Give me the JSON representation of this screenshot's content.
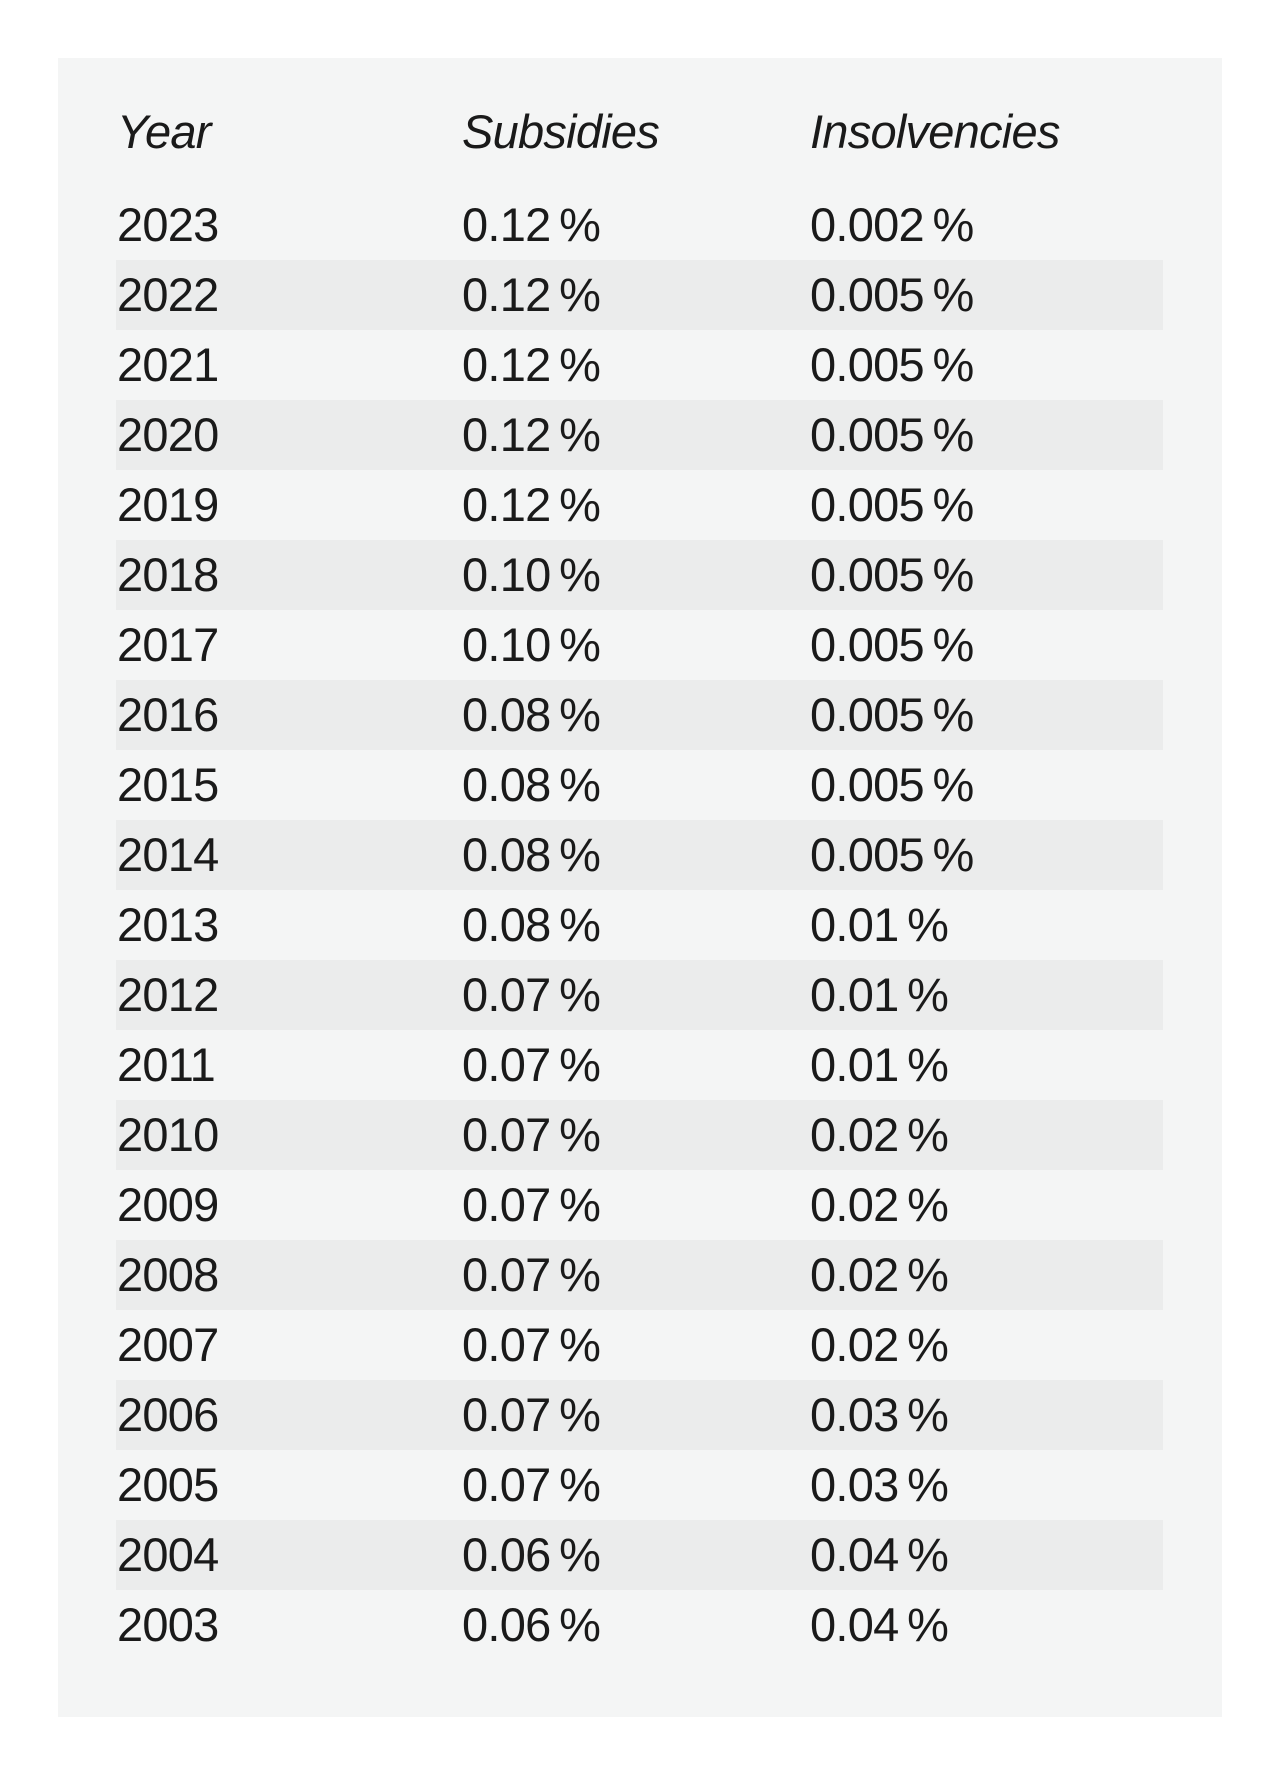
{
  "chart_data": {
    "type": "table",
    "columns": [
      "Year",
      "Subsidies",
      "Insolvencies"
    ],
    "rows": [
      {
        "year": "2023",
        "subsidies": "0.12 %",
        "insolvencies": "0.002 %"
      },
      {
        "year": "2022",
        "subsidies": "0.12 %",
        "insolvencies": "0.005 %"
      },
      {
        "year": "2021",
        "subsidies": "0.12 %",
        "insolvencies": "0.005 %"
      },
      {
        "year": "2020",
        "subsidies": "0.12 %",
        "insolvencies": "0.005 %"
      },
      {
        "year": "2019",
        "subsidies": "0.12 %",
        "insolvencies": "0.005 %"
      },
      {
        "year": "2018",
        "subsidies": "0.10 %",
        "insolvencies": "0.005 %"
      },
      {
        "year": "2017",
        "subsidies": "0.10 %",
        "insolvencies": "0.005 %"
      },
      {
        "year": "2016",
        "subsidies": "0.08 %",
        "insolvencies": "0.005 %"
      },
      {
        "year": "2015",
        "subsidies": "0.08 %",
        "insolvencies": "0.005 %"
      },
      {
        "year": "2014",
        "subsidies": "0.08 %",
        "insolvencies": "0.005 %"
      },
      {
        "year": "2013",
        "subsidies": "0.08 %",
        "insolvencies": "0.01 %"
      },
      {
        "year": "2012",
        "subsidies": "0.07 %",
        "insolvencies": "0.01 %"
      },
      {
        "year": "2011",
        "subsidies": "0.07 %",
        "insolvencies": "0.01 %"
      },
      {
        "year": "2010",
        "subsidies": "0.07 %",
        "insolvencies": "0.02 %"
      },
      {
        "year": "2009",
        "subsidies": "0.07 %",
        "insolvencies": "0.02 %"
      },
      {
        "year": "2008",
        "subsidies": "0.07 %",
        "insolvencies": "0.02 %"
      },
      {
        "year": "2007",
        "subsidies": "0.07 %",
        "insolvencies": "0.02 %"
      },
      {
        "year": "2006",
        "subsidies": "0.07 %",
        "insolvencies": "0.03 %"
      },
      {
        "year": "2005",
        "subsidies": "0.07 %",
        "insolvencies": "0.03 %"
      },
      {
        "year": "2004",
        "subsidies": "0.06 %",
        "insolvencies": "0.04 %"
      },
      {
        "year": "2003",
        "subsidies": "0.06 %",
        "insolvencies": "0.04 %"
      }
    ],
    "layout": {
      "legend": "none",
      "grid": "off",
      "row_striping": "alternate even rows shaded"
    }
  },
  "colors": {
    "page_bg": "#ffffff",
    "card_bg": "#f4f5f5",
    "stripe_bg": "#ebecec",
    "text": "#1a1a1a"
  }
}
